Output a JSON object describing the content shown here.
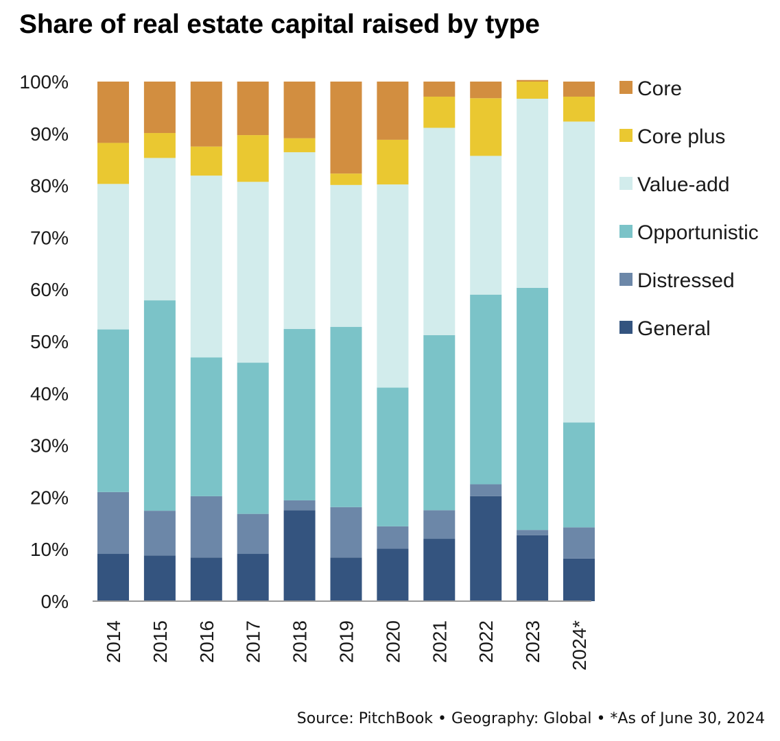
{
  "chart_data": {
    "type": "bar",
    "stacked": true,
    "title": "Share of real estate capital raised by type",
    "categories": [
      "2014",
      "2015",
      "2016",
      "2017",
      "2018",
      "2019",
      "2020",
      "2021",
      "2022",
      "2023",
      "2024*"
    ],
    "ylim": [
      0,
      100
    ],
    "yticks": [
      "0%",
      "10%",
      "20%",
      "30%",
      "40%",
      "50%",
      "60%",
      "70%",
      "80%",
      "90%",
      "100%"
    ],
    "legend_position": "right",
    "grid": false,
    "series": [
      {
        "name": "General",
        "color": "#34547f",
        "values": [
          9.1,
          8.8,
          8.4,
          9.1,
          17.5,
          8.4,
          10.1,
          12.0,
          20.2,
          12.7,
          8.2
        ]
      },
      {
        "name": "Distressed",
        "color": "#6c87a8",
        "values": [
          11.9,
          8.6,
          11.8,
          7.7,
          1.9,
          9.7,
          4.3,
          5.5,
          2.3,
          1.0,
          6.0
        ]
      },
      {
        "name": "Opportunistic",
        "color": "#7bc3c8",
        "values": [
          31.3,
          40.5,
          26.7,
          29.1,
          33.0,
          34.7,
          26.7,
          33.7,
          36.5,
          46.6,
          20.2
        ]
      },
      {
        "name": "Value-add",
        "color": "#d2ecec",
        "values": [
          28.0,
          27.4,
          35.0,
          34.8,
          34.0,
          27.3,
          39.1,
          39.9,
          26.7,
          36.4,
          57.9
        ]
      },
      {
        "name": "Core plus",
        "color": "#eac831",
        "values": [
          7.9,
          4.8,
          5.6,
          9.0,
          2.7,
          2.2,
          8.6,
          6.0,
          11.1,
          3.3,
          4.8
        ]
      },
      {
        "name": "Core",
        "color": "#d28e40",
        "values": [
          11.8,
          9.9,
          12.5,
          10.3,
          10.9,
          17.7,
          11.2,
          2.9,
          3.2,
          0.3,
          2.9
        ]
      }
    ]
  },
  "legend": {
    "items": [
      {
        "label": "Core",
        "color": "#d28e40"
      },
      {
        "label": "Core plus",
        "color": "#eac831"
      },
      {
        "label": "Value-add",
        "color": "#d2ecec"
      },
      {
        "label": "Opportunistic",
        "color": "#7bc3c8"
      },
      {
        "label": "Distressed",
        "color": "#6c87a8"
      },
      {
        "label": "General",
        "color": "#34547f"
      }
    ]
  },
  "footer": {
    "source": "Source: PitchBook  •  Geography: Global  •  *As of June 30, 2024"
  }
}
